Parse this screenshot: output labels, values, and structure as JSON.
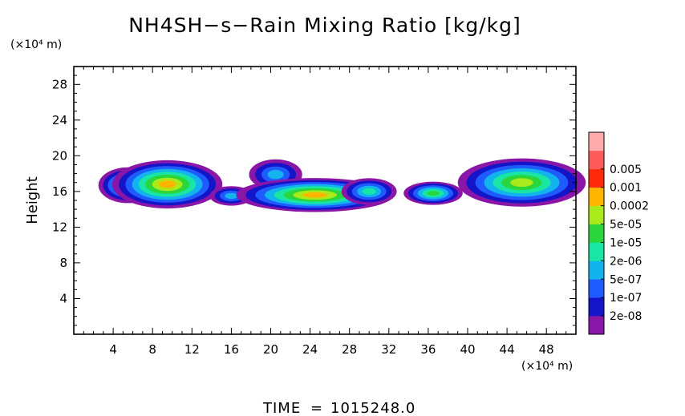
{
  "chart_data": {
    "type": "heatmap",
    "title": "NH4SH−s−Rain Mixing Ratio [kg/kg]",
    "xlabel": "",
    "ylabel": "Height",
    "x_unit": "(×10⁴ m)",
    "y_unit": "(×10⁴ m)",
    "xlim": [
      0,
      51
    ],
    "ylim": [
      0,
      30
    ],
    "x_ticks": [
      4,
      8,
      12,
      16,
      20,
      24,
      28,
      32,
      36,
      40,
      44,
      48
    ],
    "y_ticks": [
      4,
      8,
      12,
      16,
      20,
      24,
      28
    ],
    "time_label": "TIME",
    "time_value": "1015248.0",
    "colorbar": {
      "levels": [
        "2e-08",
        "1e-07",
        "5e-07",
        "2e-06",
        "1e-05",
        "5e-05",
        "0.0002",
        "0.001",
        "0.005"
      ],
      "colors": [
        "#8a16a8",
        "#1414c8",
        "#1f5cff",
        "#13b4ee",
        "#19e6a4",
        "#2ad63c",
        "#aaea1a",
        "#ffb400",
        "#ff2a0a",
        "#ff5a5a",
        "#ffaaaa"
      ]
    },
    "regions": [
      {
        "x": 5.5,
        "y": 16.7,
        "rx": 3.0,
        "ry": 2.0,
        "level": 5
      },
      {
        "x": 9.5,
        "y": 16.8,
        "rx": 5.6,
        "ry": 2.7,
        "level": 7
      },
      {
        "x": 16.0,
        "y": 15.5,
        "rx": 2.2,
        "ry": 1.1,
        "level": 3
      },
      {
        "x": 20.5,
        "y": 17.9,
        "rx": 2.7,
        "ry": 1.7,
        "level": 3
      },
      {
        "x": 24.5,
        "y": 15.6,
        "rx": 8.0,
        "ry": 1.9,
        "level": 7
      },
      {
        "x": 30.0,
        "y": 16.0,
        "rx": 2.8,
        "ry": 1.5,
        "level": 4
      },
      {
        "x": 36.5,
        "y": 15.8,
        "rx": 3.0,
        "ry": 1.3,
        "level": 5
      },
      {
        "x": 45.5,
        "y": 17.0,
        "rx": 6.5,
        "ry": 2.7,
        "level": 6
      }
    ]
  }
}
